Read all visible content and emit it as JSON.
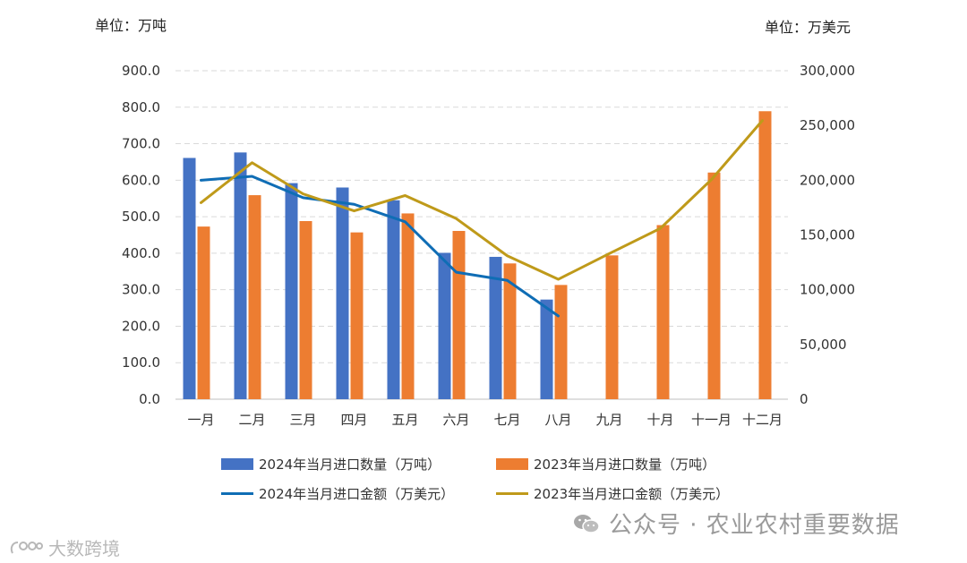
{
  "units": {
    "left": "单位：万吨",
    "right": "单位：万美元"
  },
  "watermarks": {
    "right": "公众号 · 农业农村重要数据",
    "left": "大数跨境"
  },
  "colors": {
    "bar2024": "#4472C4",
    "bar2023": "#ED7D31",
    "line2024": "#0F6DB5",
    "line2023": "#BF9A1A",
    "grid": "#D9D9D9",
    "axis": "#BFBFBF"
  },
  "chart_data": {
    "type": "bar",
    "categories": [
      "一月",
      "二月",
      "三月",
      "四月",
      "五月",
      "六月",
      "七月",
      "八月",
      "九月",
      "十月",
      "十一月",
      "十二月"
    ],
    "ylim": [
      0,
      900
    ],
    "y2lim": [
      0,
      300000
    ],
    "yticks": [
      "900.0",
      "800.0",
      "700.0",
      "600.0",
      "500.0",
      "400.0",
      "300.0",
      "200.0",
      "100.0",
      "0.0"
    ],
    "y2ticks": [
      "300,000",
      "250,000",
      "200,000",
      "150,000",
      "100,000",
      "50,000",
      "0"
    ],
    "grid": true,
    "legend_position": "bottom",
    "series": [
      {
        "name": "2024年当月进口数量（万吨）",
        "type": "bar",
        "axis": "left",
        "color": "#4472C4",
        "values": [
          661,
          676,
          592,
          580,
          545,
          401,
          390,
          273,
          null,
          null,
          null,
          null
        ]
      },
      {
        "name": "2023年当月进口数量（万吨）",
        "type": "bar",
        "axis": "left",
        "color": "#ED7D31",
        "values": [
          473,
          559,
          488,
          457,
          509,
          461,
          372,
          313,
          394,
          477,
          621,
          789
        ]
      },
      {
        "name": "2024年当月进口金额（万美元）",
        "type": "line",
        "axis": "right",
        "color": "#0F6DB5",
        "values": [
          200000,
          203500,
          184000,
          178000,
          162000,
          116000,
          108500,
          76000,
          null,
          null,
          null,
          null
        ]
      },
      {
        "name": "2023年当月进口金额（万美元）",
        "type": "line",
        "axis": "right",
        "color": "#BF9A1A",
        "values": [
          179500,
          216000,
          187500,
          172000,
          186000,
          165000,
          131000,
          109500,
          133000,
          156000,
          200500,
          254500
        ]
      }
    ]
  }
}
